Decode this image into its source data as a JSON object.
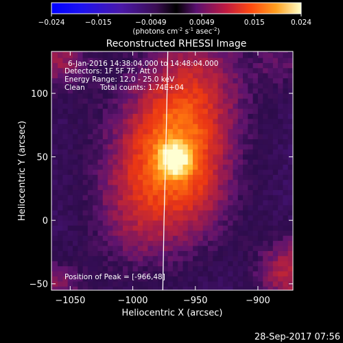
{
  "colorbar": {
    "ticks": [
      "-0.024",
      "-0.015",
      "-0.0049",
      "0.0049",
      "0.015",
      "0.024"
    ],
    "tick_values": [
      -0.024,
      -0.015,
      -0.0049,
      0.0049,
      0.015,
      0.024
    ],
    "unit_label": "(photons cm",
    "unit_exp1": "-2",
    "unit_mid": " s",
    "unit_exp2": "-1",
    "unit_tail": " asec",
    "unit_exp3": "-2",
    "unit_close": ")"
  },
  "chart_data": {
    "type": "heatmap",
    "title": "Reconstructed RHESSI Image",
    "xlabel": "Heliocentric X (arcsec)",
    "ylabel": "Heliocentric Y (arcsec)",
    "xlim": [
      -1065,
      -872
    ],
    "ylim": [
      -55,
      133
    ],
    "x_ticks": [
      -1050,
      -1000,
      -950,
      -900
    ],
    "x_tick_labels": [
      "−1050",
      "−1000",
      "−950",
      "−900"
    ],
    "y_ticks": [
      -50,
      0,
      50,
      100
    ],
    "y_tick_labels": [
      "−50",
      "0",
      "50",
      "100"
    ],
    "zlim": [
      -0.024,
      0.024
    ],
    "peak": {
      "x": -966,
      "y": 48,
      "value": 0.024
    },
    "limb_curve": {
      "x": [
        -972,
        -973,
        -974,
        -975,
        -976
      ],
      "y": [
        133,
        80,
        40,
        0,
        -55
      ]
    },
    "annotations": {
      "time": "6-Jan-2016 14:38:04.000 to 14:48:04.000",
      "detectors": "Detectors: 1F 5F 7F, Att 0",
      "energy": "Energy Range: 12.0 - 25.0 keV",
      "method": "Clean",
      "counts": "Total counts: 1.74E+04",
      "peak_position": "Position of Peak = [-966,48]"
    }
  },
  "footer": {
    "date": "28-Sep-2017 07:56"
  },
  "colors": {
    "background": "#000000",
    "text": "#ffffff",
    "limb": "#ffffff"
  }
}
